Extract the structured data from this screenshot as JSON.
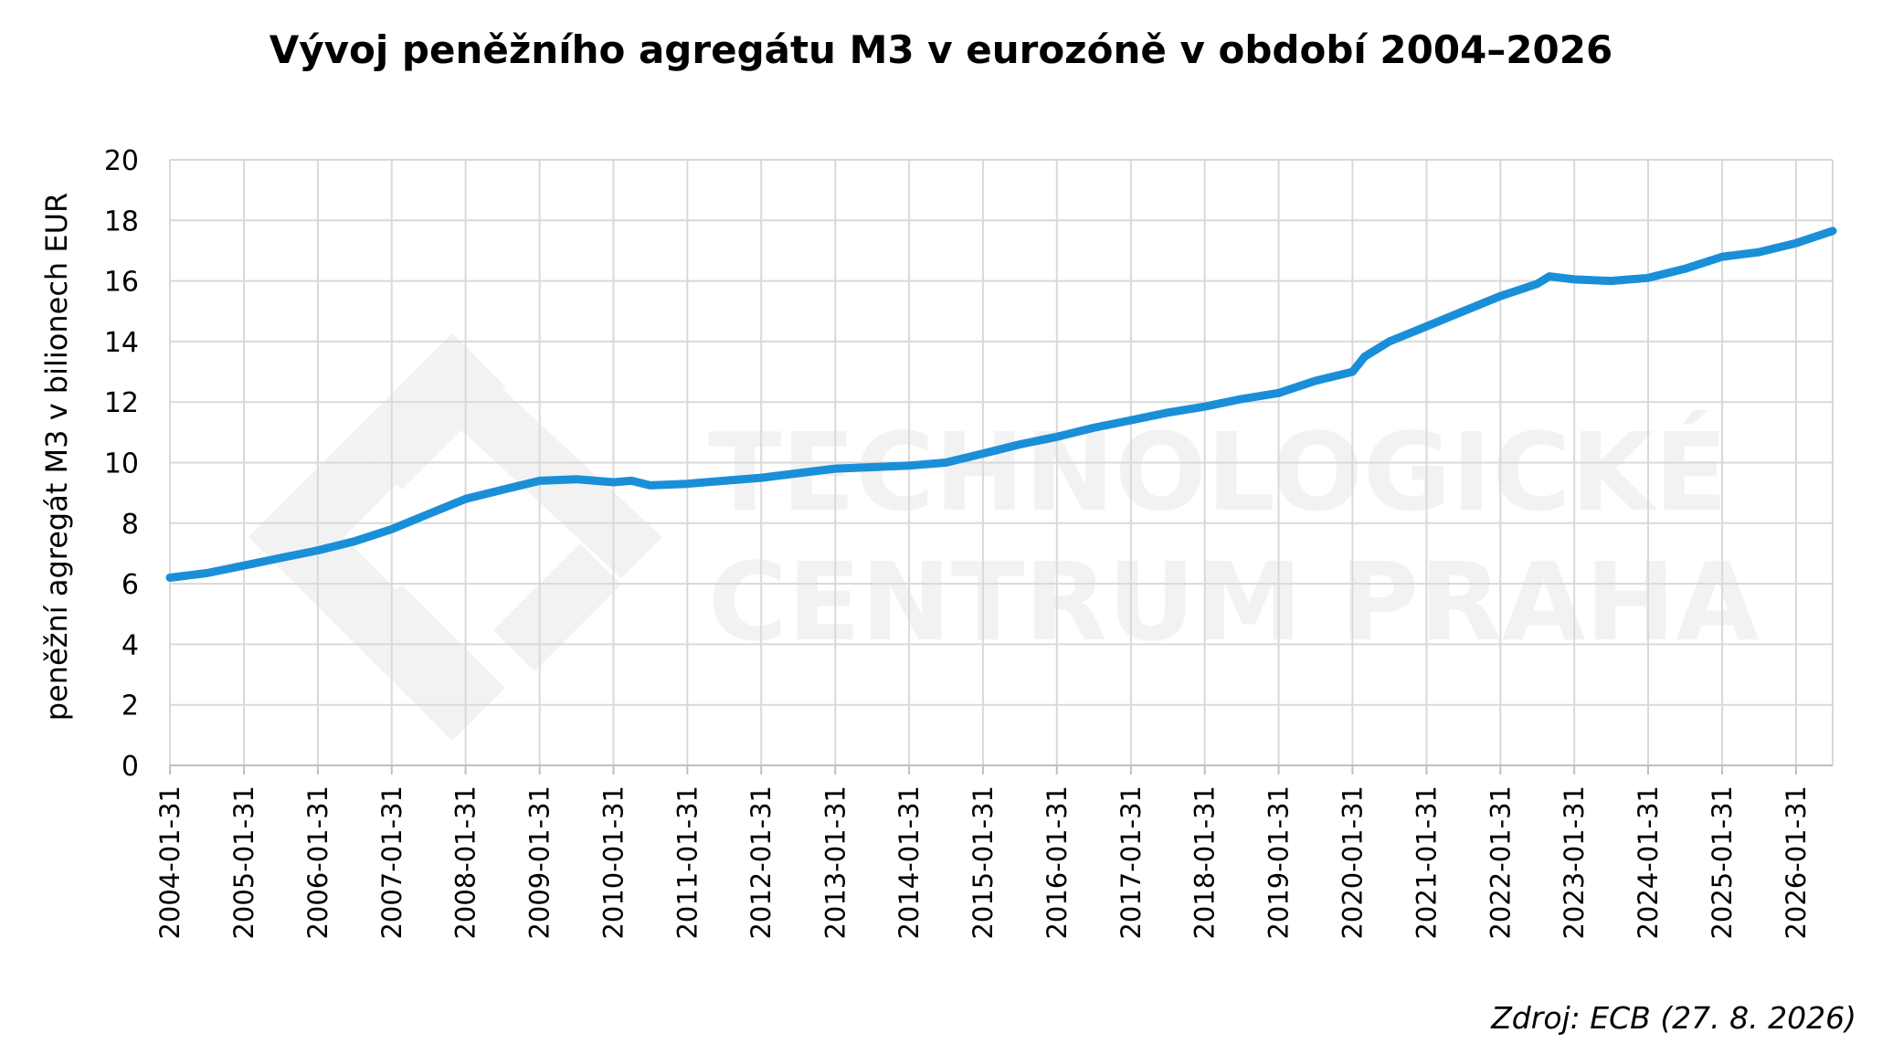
{
  "watermark": {
    "line1": "TECHNOLOGICKÉ",
    "line2": "CENTRUM PRAHA",
    "logo": "tc-praha-logo"
  },
  "chart_data": {
    "type": "line",
    "title": "Vývoj peněžního agregátu M3 v eurozóně v období 2004–2026",
    "ylabel": "peněžní agregát M3 v bilionech EUR",
    "xlabel": "",
    "source": "Zdroj: ECB (27. 8. 2026)",
    "ylim": [
      0,
      20
    ],
    "yticks": [
      "0",
      "2",
      "4",
      "6",
      "8",
      "10",
      "12",
      "14",
      "16",
      "18",
      "20"
    ],
    "xticks": [
      "2004-01-31",
      "2005-01-31",
      "2006-01-31",
      "2007-01-31",
      "2008-01-31",
      "2009-01-31",
      "2010-01-31",
      "2011-01-31",
      "2012-01-31",
      "2013-01-31",
      "2014-01-31",
      "2015-01-31",
      "2016-01-31",
      "2017-01-31",
      "2018-01-31",
      "2019-01-31",
      "2020-01-31",
      "2021-01-31",
      "2022-01-31",
      "2023-01-31",
      "2024-01-31",
      "2025-01-31",
      "2026-01-31"
    ],
    "xlim": [
      "2004-01-31",
      "2026-07-31"
    ],
    "grid": true,
    "line_color": "#1a8fd8",
    "series": [
      {
        "name": "",
        "x": [
          "2004-01-31",
          "2004-07-31",
          "2005-01-31",
          "2005-07-31",
          "2006-01-31",
          "2006-07-31",
          "2007-01-31",
          "2007-07-31",
          "2008-01-31",
          "2008-07-31",
          "2009-01-31",
          "2009-07-31",
          "2010-01-31",
          "2010-04-30",
          "2010-07-31",
          "2011-01-31",
          "2011-07-31",
          "2012-01-31",
          "2012-07-31",
          "2013-01-31",
          "2013-07-31",
          "2014-01-31",
          "2014-07-31",
          "2015-01-31",
          "2015-07-31",
          "2016-01-31",
          "2016-07-31",
          "2017-01-31",
          "2017-07-31",
          "2018-01-31",
          "2018-07-31",
          "2019-01-31",
          "2019-07-31",
          "2020-01-31",
          "2020-03-31",
          "2020-07-31",
          "2021-01-31",
          "2021-07-31",
          "2022-01-31",
          "2022-07-31",
          "2022-09-30",
          "2023-01-31",
          "2023-07-31",
          "2024-01-31",
          "2024-07-31",
          "2025-01-31",
          "2025-07-31",
          "2026-01-31",
          "2026-07-31"
        ],
        "values": [
          6.2,
          6.35,
          6.6,
          6.85,
          7.1,
          7.4,
          7.8,
          8.3,
          8.8,
          9.1,
          9.4,
          9.45,
          9.35,
          9.4,
          9.25,
          9.3,
          9.4,
          9.5,
          9.65,
          9.8,
          9.85,
          9.9,
          10.0,
          10.3,
          10.6,
          10.85,
          11.15,
          11.4,
          11.65,
          11.85,
          12.1,
          12.3,
          12.7,
          13.0,
          13.5,
          14.0,
          14.5,
          15.0,
          15.5,
          15.9,
          16.15,
          16.05,
          16.0,
          16.1,
          16.4,
          16.8,
          16.95,
          17.25,
          17.65
        ]
      }
    ]
  }
}
